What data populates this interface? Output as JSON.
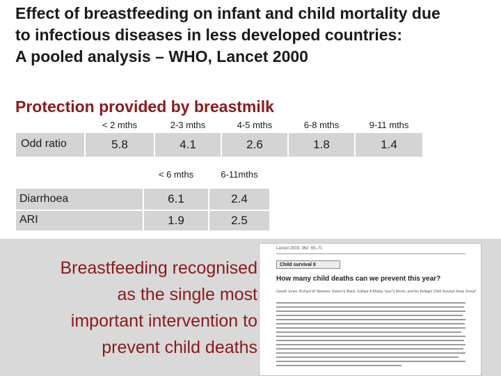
{
  "title": {
    "line1": "Effect of breastfeeding on infant and child mortality due",
    "line2": "to infectious diseases in less developed countries:",
    "line3": "A pooled analysis – WHO, Lancet 2000"
  },
  "heading": "Protection provided by breastmilk",
  "odds_table": {
    "row_label": "Odd ratio",
    "columns": [
      "< 2 mths",
      "2-3 mths",
      "4-5 mths",
      "6-8 mths",
      "9-11 mths"
    ],
    "values": [
      "5.8",
      "4.1",
      "2.6",
      "1.8",
      "1.4"
    ]
  },
  "cause_table": {
    "columns": [
      "< 6 mths",
      "6-11mths"
    ],
    "rows": [
      {
        "label": "Diarrhoea",
        "values": [
          "6.1",
          "2.4"
        ]
      },
      {
        "label": "ARI",
        "values": [
          "1.9",
          "2.5"
        ]
      }
    ]
  },
  "quote": {
    "line1": "Breastfeeding recognised",
    "line2": "as the single most",
    "line3": "important intervention to",
    "line4": "prevent child deaths"
  },
  "paper": {
    "citation": "Lancet 2003; 362: 65–71",
    "section": "Child survival II",
    "title": "How many child deaths can we prevent this year?",
    "authors": "Gareth Jones, Richard W Steketee, Robert E Black, Zulfiqar A Bhutta, Saul S Morris, and the Bellagio Child Survival Study Group*"
  },
  "colors": {
    "heading": "#8b1a1a",
    "cell_fill": "#d4d4d4",
    "band": "#d9d9d9"
  }
}
